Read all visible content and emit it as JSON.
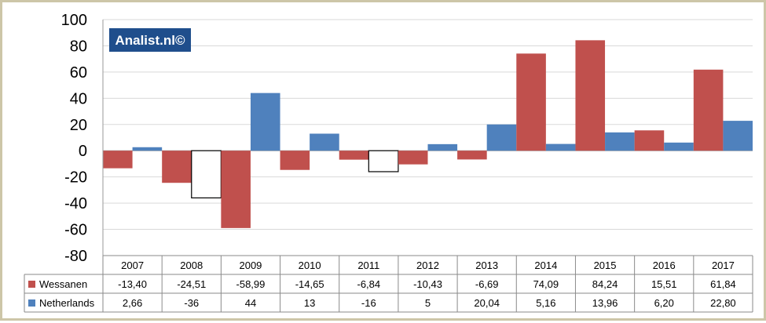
{
  "badge": "Analist.nl©",
  "chart_data": {
    "type": "bar",
    "title": "",
    "xlabel": "",
    "ylabel": "",
    "ylim": [
      -80,
      100
    ],
    "yticks": [
      100,
      80,
      60,
      40,
      20,
      0,
      -20,
      -40,
      -60,
      -80
    ],
    "categories": [
      "2007",
      "2008",
      "2009",
      "2010",
      "2011",
      "2012",
      "2013",
      "2014",
      "2015",
      "2016",
      "2017"
    ],
    "series": [
      {
        "name": "Wessanen",
        "color": "#c0504d",
        "values": [
          -13.4,
          -24.51,
          -58.99,
          -14.65,
          -6.84,
          -10.43,
          -6.69,
          74.09,
          84.24,
          15.51,
          61.84
        ],
        "labels": [
          "-13,40",
          "-24,51",
          "-58,99",
          "-14,65",
          "-6,84",
          "-10,43",
          "-6,69",
          "74,09",
          "84,24",
          "15,51",
          "61,84"
        ]
      },
      {
        "name": "Netherlands",
        "color": "#4f81bd",
        "negative_color": "#ffffff",
        "values": [
          2.66,
          -36,
          44,
          13,
          -16,
          5,
          20.04,
          5.16,
          13.96,
          6.2,
          22.8
        ],
        "labels": [
          "2,66",
          "-36",
          "44",
          "13",
          "-16",
          "5",
          "20,04",
          "5,16",
          "13,96",
          "6,20",
          "22,80"
        ]
      }
    ],
    "grid": true,
    "legend": "data-table"
  }
}
